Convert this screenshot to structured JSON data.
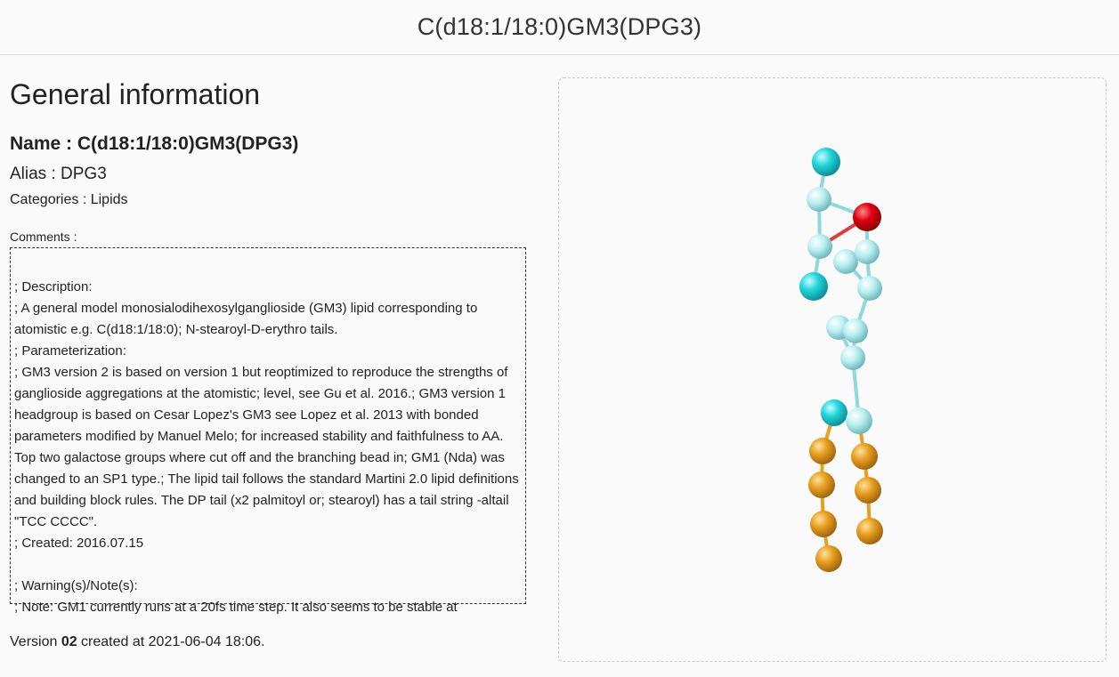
{
  "header": {
    "title": "C(d18:1/18:0)GM3(DPG3)"
  },
  "general": {
    "heading": "General information",
    "name_label": "Name : ",
    "name_value": "C(d18:1/18:0)GM3(DPG3)",
    "alias_label": "Alias : ",
    "alias_value": "DPG3",
    "categories_label": "Categories : ",
    "categories_value": "Lipids",
    "comments_label": "Comments :",
    "comments_text": "\n; Description:\n; A general model monosialodihexosylganglioside (GM3) lipid corresponding to atomistic e.g. C(d18:1/18:0); N-stearoyl-D-erythro tails.\n; Parameterization:\n; GM3 version 2 is based on version 1 but reoptimized to reproduce the strengths of ganglioside aggregations at the atomistic; level, see Gu et al. 2016.; GM3 version 1 headgroup is based on Cesar Lopez's GM3 see Lopez et al. 2013 with bonded parameters modified by Manuel Melo; for increased stability and faithfulness to AA. Top two galactose groups where cut off and the branching bead in; GM1 (Nda) was changed to an SP1 type.; The lipid tail follows the standard Martini 2.0 lipid definitions and building block rules. The DP tail (x2 palmitoyl or; stearoyl) has a tail string -altail \"TCC CCCC\".\n; Created: 2016.07.15\n\n; Warning(s)/Note(s):\n; Note: GM1 currently runs at a 20fs time step. It also seems to be stable at",
    "version_prefix": "Version ",
    "version_number": "02",
    "version_suffix": " created at 2021-06-04 18:06."
  },
  "viewer": {
    "colors": {
      "cyan": "#22d6dc",
      "light_cyan": "#b8eef0",
      "red": "#e00010",
      "orange": "#e8a020"
    }
  }
}
